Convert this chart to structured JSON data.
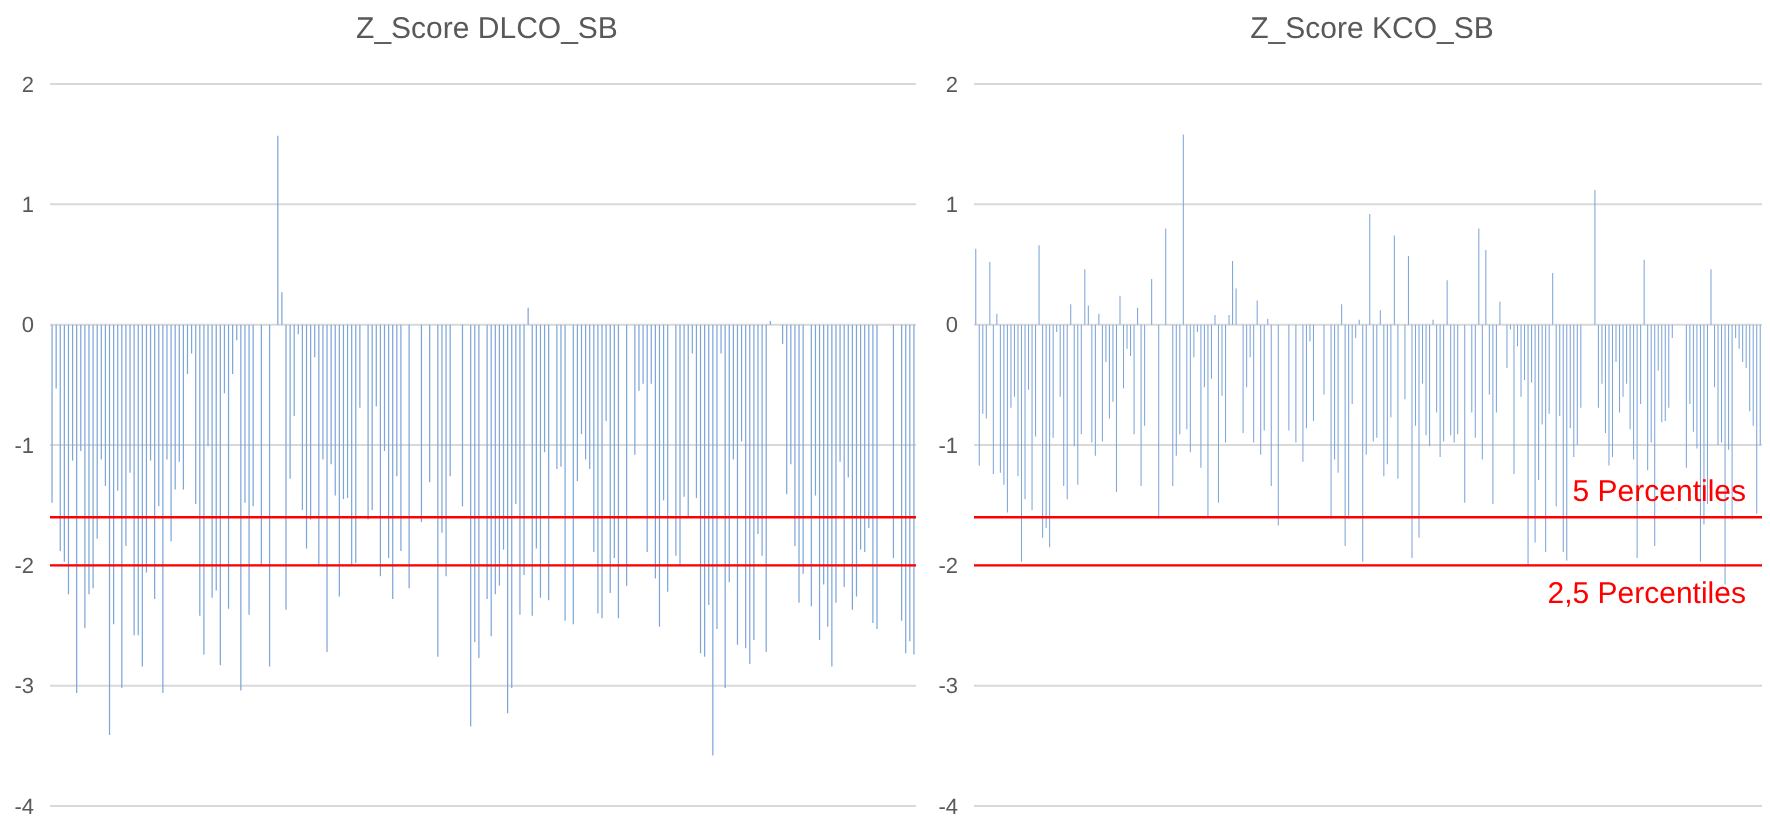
{
  "chart_data": [
    {
      "type": "bar",
      "title": "Z_Score DLCO_SB",
      "color": "#7fa6d9",
      "ylim": [
        -4,
        2
      ],
      "yticks": [
        -4,
        -3,
        -2,
        -1,
        0,
        1,
        2
      ],
      "grid": "y",
      "tick_labels": "y",
      "ref_lines": [
        {
          "axis": "y",
          "value": -1.6,
          "color": "#ff0000"
        },
        {
          "axis": "y",
          "value": -2,
          "color": "#ff0000"
        }
      ],
      "categories": [
        null,
        null,
        null,
        null,
        null,
        null,
        null,
        null,
        null,
        null,
        null,
        null,
        null,
        null,
        null,
        null,
        null,
        null,
        null,
        null,
        null,
        null,
        null,
        null,
        null,
        null,
        null,
        null,
        null,
        null,
        null,
        null,
        null,
        null,
        null,
        null,
        null,
        null,
        null,
        null,
        null,
        null,
        null,
        null,
        null,
        null,
        null,
        null,
        null,
        null,
        null,
        null,
        null,
        null,
        null,
        null,
        null,
        null,
        null,
        null,
        null,
        null,
        null,
        null,
        null,
        null,
        null,
        null,
        null,
        null,
        null,
        null,
        null,
        null,
        null,
        null,
        null,
        null,
        null,
        null,
        null,
        null,
        null,
        null,
        null,
        null,
        null,
        null,
        null,
        null,
        null,
        null,
        null,
        null,
        null,
        null,
        null,
        null,
        null,
        null,
        null,
        null,
        null,
        null,
        null,
        null,
        null,
        null,
        null,
        null,
        null,
        null,
        null,
        null,
        null,
        null,
        null,
        null,
        null,
        null,
        null,
        null,
        null,
        null,
        null,
        null,
        null,
        null,
        null,
        null,
        null,
        null,
        null,
        null,
        null,
        null,
        null,
        null,
        null,
        null,
        null,
        null,
        null,
        null,
        null,
        null,
        null,
        null,
        null,
        null,
        null,
        null,
        null,
        null,
        null,
        null,
        null,
        null,
        null,
        null,
        null,
        null,
        null,
        null,
        null,
        null,
        null,
        null,
        null,
        null,
        null,
        null,
        null,
        null,
        null,
        null,
        null,
        null,
        null,
        null,
        null,
        null,
        null,
        null,
        null,
        null,
        null,
        null,
        null,
        null,
        null,
        null,
        null,
        null,
        null,
        null,
        null,
        null,
        null,
        null,
        null,
        null,
        null,
        null,
        null,
        null,
        null,
        null,
        null,
        null,
        null
      ],
      "values": [
        -1.48,
        -0.53,
        -1.88,
        -1.97,
        -2.24,
        -1.13,
        -3.06,
        -1.05,
        -2.52,
        -2.24,
        -2.19,
        -1.78,
        -1.12,
        -1.34,
        -3.41,
        -2.49,
        -1.38,
        -3.02,
        -1.84,
        -1.23,
        -2.58,
        -2.58,
        -2.84,
        -2.06,
        -1.13,
        -2.28,
        -1.51,
        -3.06,
        -1.12,
        -1.8,
        -1.37,
        -1.14,
        -1.37,
        -0.41,
        -0.24,
        -1.49,
        -2.42,
        -2.74,
        -1.01,
        -2.27,
        -2.21,
        -2.83,
        -0.57,
        -2.36,
        -0.41,
        -0.13,
        -3.04,
        -1.48,
        -2.41,
        -1.51,
        null,
        -2.0,
        null,
        -2.84,
        null,
        1.57,
        0.27,
        -2.37,
        -1.28,
        -0.76,
        -0.08,
        -1.54,
        -1.86,
        -1.62,
        -0.27,
        -2.0,
        -1.12,
        -2.72,
        -1.16,
        -1.42,
        -2.26,
        -1.45,
        -1.44,
        -2.0,
        -1.98,
        -0.69,
        null,
        -1.62,
        -1.54,
        -0.68,
        -2.09,
        -1.05,
        -1.94,
        -2.28,
        -1.26,
        -1.88,
        null,
        -2.19,
        null,
        null,
        -1.64,
        null,
        -1.31,
        null,
        -2.76,
        -1.73,
        -2.09,
        -1.26,
        null,
        null,
        -1.51,
        null,
        -3.34,
        -2.64,
        -2.77,
        null,
        -2.28,
        -2.59,
        -2.24,
        -2.17,
        -1.87,
        -3.23,
        -3.02,
        -1.49,
        -2.41,
        -2.08,
        0.14,
        -2.42,
        -1.86,
        -2.27,
        -1.06,
        -2.29,
        null,
        -1.2,
        -1.18,
        -2.46,
        null,
        -2.49,
        -1.3,
        -0.91,
        -1.12,
        -1.2,
        -1.89,
        -2.4,
        -2.44,
        -0.8,
        -2.23,
        -1.94,
        -2.44,
        null,
        -2.17,
        null,
        -1.08,
        -0.55,
        -0.49,
        -1.89,
        -0.49,
        -2.11,
        -2.51,
        -1.46,
        -2.22,
        null,
        -1.92,
        -2.0,
        -1.43,
        -1.59,
        -0.24,
        -1.44,
        -2.73,
        -2.76,
        -2.33,
        -3.58,
        -2.53,
        -0.24,
        -3.02,
        -2.14,
        -1.12,
        -2.66,
        -0.97,
        -2.69,
        -2.82,
        -2.62,
        -1.74,
        -1.92,
        -2.72,
        0.03,
        null,
        null,
        -0.16,
        -1.41,
        -1.16,
        -1.84,
        -2.31,
        -2.07,
        null,
        -2.34,
        -1.42,
        -2.62,
        -2.16,
        -2.51,
        -2.84,
        -2.31,
        -1.14,
        -2.18,
        -1.27,
        -2.37,
        -2.26,
        -1.87,
        -1.89,
        -1.69,
        -2.48,
        -2.53,
        null,
        null,
        null,
        -1.94,
        null,
        -2.46,
        -2.73,
        -2.63,
        -2.74
      ]
    },
    {
      "type": "bar",
      "title": "Z_Score KCO_SB",
      "color": "#7fa6d9",
      "ylim": [
        -4,
        2
      ],
      "yticks": [
        -4,
        -3,
        -2,
        -1,
        0,
        1,
        2
      ],
      "grid": "y",
      "tick_labels": "y",
      "ref_lines": [
        {
          "axis": "y",
          "value": -1.6,
          "label": "5 Percentiles",
          "color": "#ff0000"
        },
        {
          "axis": "y",
          "value": -2,
          "label": "2,5 Percentiles",
          "color": "#ff0000"
        }
      ],
      "categories": [
        null,
        null,
        null,
        null,
        null,
        null,
        null,
        null,
        null,
        null,
        null,
        null,
        null,
        null,
        null,
        null,
        null,
        null,
        null,
        null,
        null,
        null,
        null,
        null,
        null,
        null,
        null,
        null,
        null,
        null,
        null,
        null,
        null,
        null,
        null,
        null,
        null,
        null,
        null,
        null,
        null,
        null,
        null,
        null,
        null,
        null,
        null,
        null,
        null,
        null,
        null,
        null,
        null,
        null,
        null,
        null,
        null,
        null,
        null,
        null,
        null,
        null,
        null,
        null,
        null,
        null,
        null,
        null,
        null,
        null,
        null,
        null,
        null,
        null,
        null,
        null,
        null,
        null,
        null,
        null,
        null,
        null,
        null,
        null,
        null,
        null,
        null,
        null,
        null,
        null,
        null,
        null,
        null,
        null,
        null,
        null,
        null,
        null,
        null,
        null,
        null,
        null,
        null,
        null,
        null,
        null,
        null,
        null,
        null,
        null,
        null,
        null,
        null,
        null,
        null,
        null,
        null,
        null,
        null,
        null,
        null,
        null,
        null,
        null,
        null,
        null,
        null,
        null,
        null,
        null,
        null,
        null,
        null,
        null,
        null,
        null,
        null,
        null,
        null,
        null,
        null,
        null,
        null,
        null,
        null,
        null,
        null,
        null,
        null,
        null,
        null,
        null,
        null,
        null,
        null,
        null,
        null,
        null,
        null,
        null,
        null,
        null,
        null,
        null,
        null,
        null,
        null,
        null,
        null,
        null,
        null,
        null,
        null,
        null,
        null,
        null,
        null,
        null,
        null,
        null,
        null,
        null,
        null,
        null,
        null,
        null,
        null,
        null,
        null,
        null,
        null,
        null,
        null,
        null,
        null,
        null,
        null,
        null,
        null,
        null,
        null,
        null,
        null,
        null,
        null,
        null,
        null,
        null,
        null,
        null,
        null,
        null,
        null,
        null,
        null,
        null,
        null,
        null,
        null,
        null,
        null,
        null,
        null,
        null
      ],
      "values": [
        0.63,
        -1.17,
        -0.74,
        -0.78,
        0.52,
        -1.24,
        0.09,
        -1.23,
        -1.33,
        -1.56,
        -0.69,
        -0.6,
        -1.26,
        -1.97,
        -1.45,
        -0.54,
        -1.54,
        -0.93,
        0.66,
        -1.77,
        -1.69,
        -1.85,
        -0.94,
        -0.06,
        -0.6,
        -1.34,
        -1.45,
        0.17,
        -1.01,
        -1.33,
        -0.91,
        0.46,
        0.16,
        -0.98,
        -1.09,
        0.09,
        -0.97,
        -0.31,
        -0.78,
        -0.64,
        -1.39,
        0.24,
        -0.53,
        -0.2,
        -0.26,
        -0.91,
        0.14,
        -1.34,
        -0.84,
        null,
        0.38,
        null,
        -1.61,
        null,
        0.8,
        null,
        -1.34,
        -1.09,
        -0.91,
        1.58,
        -0.87,
        -1.06,
        -0.27,
        -0.06,
        -1.19,
        -0.52,
        -1.59,
        -0.45,
        0.08,
        -1.48,
        -0.59,
        -0.98,
        0.08,
        0.53,
        0.3,
        null,
        -0.9,
        -0.52,
        -0.27,
        -0.98,
        0.2,
        -1.08,
        -0.88,
        0.05,
        -1.34,
        null,
        -1.67,
        null,
        null,
        -0.88,
        null,
        -0.98,
        null,
        -1.14,
        -0.86,
        -0.14,
        -0.8,
        null,
        null,
        -0.58,
        null,
        -1.61,
        -1.12,
        -1.23,
        0.17,
        -1.84,
        -1.61,
        -0.66,
        -0.11,
        0.04,
        -1.97,
        -1.08,
        0.92,
        -0.97,
        -0.94,
        0.12,
        -1.26,
        -1.16,
        -0.77,
        0.74,
        -1.28,
        null,
        -0.62,
        0.57,
        -1.94,
        -0.84,
        -1.77,
        -0.49,
        -0.92,
        -1.01,
        0.04,
        -0.73,
        -1.1,
        -0.97,
        0.37,
        -0.92,
        -0.98,
        -0.91,
        null,
        -1.48,
        null,
        -0.73,
        -0.94,
        0.8,
        -1.12,
        0.62,
        -0.58,
        -1.49,
        -0.73,
        0.19,
        null,
        -0.36,
        -0.04,
        -1.24,
        -0.18,
        -0.6,
        -0.46,
        -2.0,
        -0.48,
        -1.81,
        -1.29,
        -0.83,
        -1.89,
        -0.74,
        0.43,
        -1.51,
        -0.76,
        -1.89,
        -1.96,
        -0.86,
        -1.1,
        -1.0,
        -0.69,
        null,
        null,
        null,
        1.12,
        -0.69,
        -0.49,
        -0.9,
        -1.17,
        -1.1,
        -0.31,
        -0.73,
        -0.6,
        -0.49,
        -0.87,
        -1.12,
        -1.94,
        -0.66,
        0.54,
        -1.21,
        -0.98,
        -1.84,
        -0.38,
        -0.81,
        -0.8,
        -0.69,
        -0.11,
        null,
        null,
        null,
        -1.19,
        -0.66,
        -0.89,
        -1.03,
        -1.97,
        -1.66,
        -1.49,
        0.46,
        -0.52,
        -1.0,
        -0.98,
        -2.16,
        -1.04,
        -1.62,
        -0.11,
        -0.2,
        -0.31,
        -0.36,
        -0.72,
        -0.84,
        -1.57,
        -1.0
      ]
    }
  ]
}
